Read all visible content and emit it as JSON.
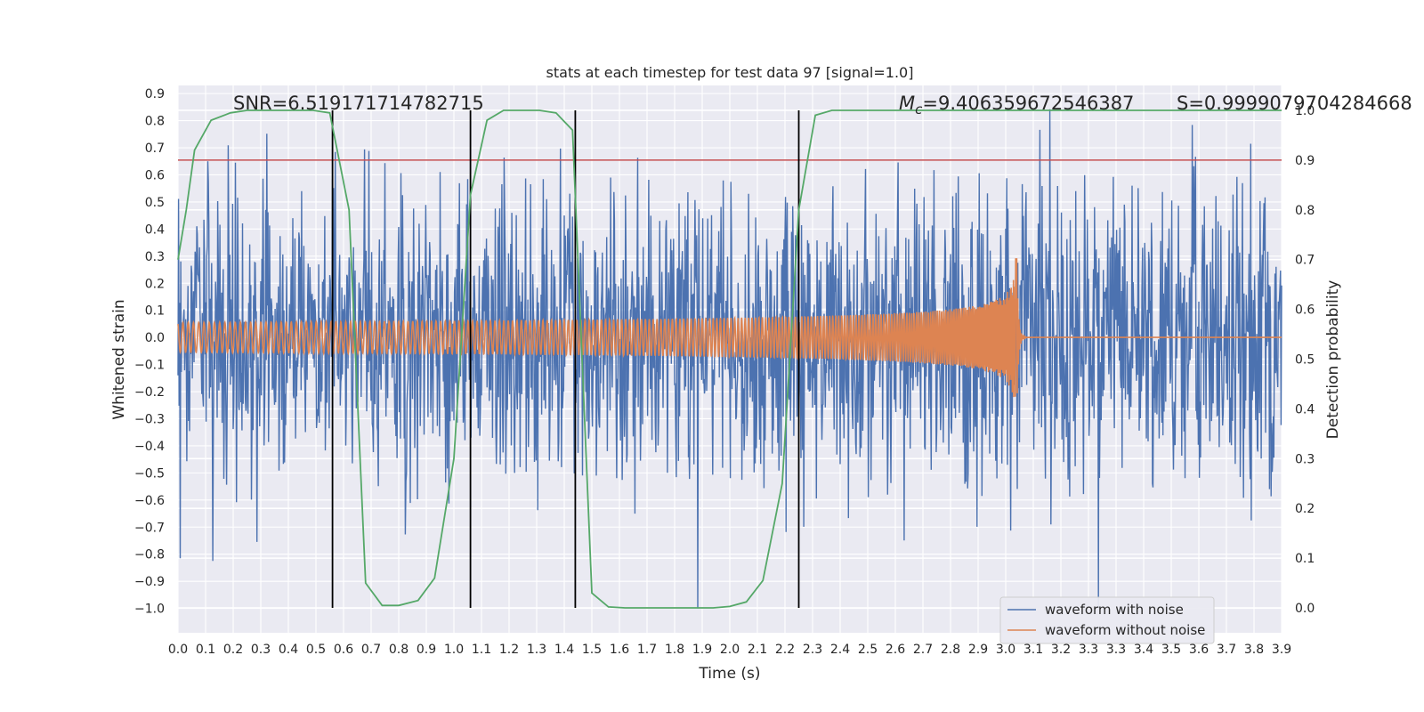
{
  "chart_data": {
    "type": "line",
    "title": "stats at each timestep for test data 97 [signal=1.0]",
    "xlabel": "Time (s)",
    "ylabel_left": "Whitened strain",
    "ylabel_right": "Detection probability",
    "xlim": [
      0.0,
      4.0
    ],
    "ylim_left": [
      -1.09,
      0.93
    ],
    "ylim_right": [
      -0.05,
      1.05
    ],
    "x_ticks": [
      "0.0",
      "0.1",
      "0.2",
      "0.3",
      "0.4",
      "0.5",
      "0.6",
      "0.7",
      "0.8",
      "0.9",
      "1.0",
      "1.1",
      "1.2",
      "1.3",
      "1.4",
      "1.5",
      "1.6",
      "1.7",
      "1.8",
      "1.9",
      "2.0",
      "2.1",
      "2.2",
      "2.3",
      "2.4",
      "2.5",
      "2.6",
      "2.7",
      "2.8",
      "2.9",
      "3.0",
      "3.1",
      "3.2",
      "3.3",
      "3.3",
      "3.4",
      "3.5",
      "3.6",
      "3.7",
      "3.8",
      "3.9"
    ],
    "y_ticks_left": [
      "0.9",
      "0.8",
      "0.7",
      "0.6",
      "0.5",
      "0.4",
      "0.3",
      "0.2",
      "0.1",
      "0.0",
      "−0.1",
      "−0.2",
      "−0.3",
      "−0.4",
      "−0.5",
      "−0.6",
      "−0.7",
      "−0.8",
      "−0.9",
      "−1.0"
    ],
    "y_ticks_right": [
      "1.0",
      "0.9",
      "0.8",
      "0.7",
      "0.6",
      "0.5",
      "0.4",
      "0.3",
      "0.2",
      "0.1",
      "0.0"
    ],
    "annotations": {
      "snr": "SNR=6.519171714782715",
      "mc_symbol": "M",
      "mc_subscript": "c",
      "mc_value": "=9.406359672546387",
      "s": "S=0.9999079704284668"
    },
    "threshold": {
      "value": 0.9,
      "axis": "right",
      "color": "#c44e52"
    },
    "vertical_lines": [
      0.56,
      1.06,
      1.44,
      2.25
    ],
    "series": [
      {
        "name": "waveform with noise",
        "color": "#4c72b0",
        "axis": "left",
        "amplitude_range": [
          -1.0,
          0.86
        ]
      },
      {
        "name": "waveform without noise",
        "color": "#dd8452",
        "axis": "left",
        "merger_time": 3.04,
        "peak_amplitude": 0.29
      },
      {
        "color": "#55a868",
        "axis": "right",
        "points": [
          [
            0.0,
            0.7
          ],
          [
            0.03,
            0.8
          ],
          [
            0.06,
            0.92
          ],
          [
            0.12,
            0.98
          ],
          [
            0.19,
            0.995
          ],
          [
            0.25,
            1.0
          ],
          [
            0.31,
            1.0
          ],
          [
            0.37,
            1.0
          ],
          [
            0.43,
            1.0
          ],
          [
            0.49,
            1.0
          ],
          [
            0.55,
            0.995
          ],
          [
            0.62,
            0.8
          ],
          [
            0.68,
            0.05
          ],
          [
            0.74,
            0.005
          ],
          [
            0.8,
            0.005
          ],
          [
            0.87,
            0.015
          ],
          [
            0.93,
            0.06
          ],
          [
            1.0,
            0.3
          ],
          [
            1.06,
            0.83
          ],
          [
            1.12,
            0.98
          ],
          [
            1.18,
            1.0
          ],
          [
            1.25,
            1.0
          ],
          [
            1.31,
            1.0
          ],
          [
            1.37,
            0.995
          ],
          [
            1.43,
            0.96
          ],
          [
            1.5,
            0.03
          ],
          [
            1.56,
            0.002
          ],
          [
            1.62,
            0.0
          ],
          [
            1.75,
            0.0
          ],
          [
            1.87,
            0.0
          ],
          [
            1.94,
            0.0
          ],
          [
            2.0,
            0.003
          ],
          [
            2.06,
            0.012
          ],
          [
            2.12,
            0.055
          ],
          [
            2.19,
            0.25
          ],
          [
            2.25,
            0.8
          ],
          [
            2.31,
            0.99
          ],
          [
            2.37,
            1.0
          ],
          [
            2.5,
            1.0
          ],
          [
            3.0,
            1.0
          ],
          [
            3.5,
            1.0
          ],
          [
            4.0,
            1.0
          ]
        ]
      }
    ],
    "legend": {
      "placement": "lower-right"
    },
    "grid": true,
    "style": {
      "axes_bg": "#eaeaf2",
      "grid": "#ffffff",
      "vline": "#000000"
    }
  }
}
